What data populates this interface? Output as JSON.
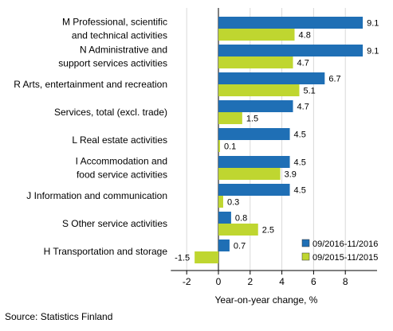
{
  "chart_data": {
    "type": "bar",
    "orientation": "horizontal",
    "categories": [
      [
        "M Professional, scientific",
        "and technical activities"
      ],
      [
        "N Administrative and",
        "support services activities"
      ],
      [
        "R Arts, entertainment and recreation"
      ],
      [
        "Services, total (excl. trade)"
      ],
      [
        "L Real estate activities"
      ],
      [
        "I Accommodation and",
        "food service activities"
      ],
      [
        "J Information and communication"
      ],
      [
        "S Other service activities"
      ],
      [
        "H Transportation and storage"
      ]
    ],
    "series": [
      {
        "name": "09/2016-11/2016",
        "color": "#1f6fb5",
        "values": [
          9.1,
          9.1,
          6.7,
          4.7,
          4.5,
          4.5,
          4.5,
          0.8,
          0.7
        ],
        "labels": [
          "9.1",
          "9.1",
          "6.7",
          "4.7",
          "4.5",
          "4.5",
          "4.5",
          "0.8",
          "0.7"
        ]
      },
      {
        "name": "09/2015-11/2015",
        "color": "#bfd630",
        "values": [
          4.8,
          4.7,
          5.1,
          1.5,
          0.1,
          3.9,
          0.3,
          2.5,
          -1.5
        ],
        "labels": [
          "4.8",
          "4.7",
          "5.1",
          "1.5",
          "0.1",
          "3.9",
          "0.3",
          "2.5",
          "-1.5"
        ]
      }
    ],
    "xlim": [
      -3,
      10
    ],
    "xticks": [
      -2,
      0,
      2,
      4,
      6,
      8
    ],
    "xtick_labels": [
      "-2",
      "0",
      "2",
      "4",
      "6",
      "8"
    ],
    "xlabel": "Year-on-year change, %",
    "legend_position": "bottom-right",
    "grid": "vertical"
  },
  "source": "Source: Statistics Finland"
}
